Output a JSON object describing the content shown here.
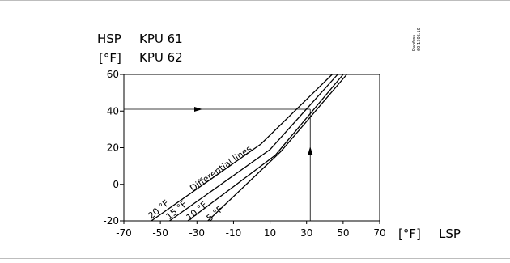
{
  "chart_data": {
    "type": "line",
    "title_lines": [
      "KPU 61",
      "KPU 62"
    ],
    "ylabel_lines": [
      "HSP",
      "[°F]"
    ],
    "xlabel_unit": "[°F]",
    "xlabel": "LSP",
    "xlim": [
      -70,
      70
    ],
    "ylim": [
      -20,
      60
    ],
    "x_ticks": [
      -70,
      -50,
      -30,
      -10,
      10,
      30,
      50,
      70
    ],
    "x_tick_labels": [
      "-70",
      "-50",
      "-30",
      "-10",
      "10",
      "30",
      "50",
      "70"
    ],
    "y_ticks": [
      -20,
      0,
      20,
      40,
      60
    ],
    "y_tick_labels": [
      "-20",
      "0",
      "20",
      "40",
      "60"
    ],
    "grid": false,
    "series": [
      {
        "name": "20 °F",
        "points": [
          [
            -55,
            -20
          ],
          [
            5,
            22
          ],
          [
            44,
            60
          ]
        ]
      },
      {
        "name": "15 °F",
        "points": [
          [
            -45,
            -20
          ],
          [
            10,
            19
          ],
          [
            47,
            60
          ]
        ]
      },
      {
        "name": "10 °F",
        "points": [
          [
            -35,
            -20
          ],
          [
            13,
            16
          ],
          [
            50,
            60
          ]
        ]
      },
      {
        "name": "5 °F",
        "points": [
          [
            -24,
            -20
          ],
          [
            16,
            18
          ],
          [
            52,
            60
          ]
        ]
      }
    ],
    "annotation": "Differential lines",
    "example": {
      "lsp": 32,
      "hsp": 41
    },
    "watermark": [
      "Danfoss",
      "60-1305.10"
    ]
  }
}
